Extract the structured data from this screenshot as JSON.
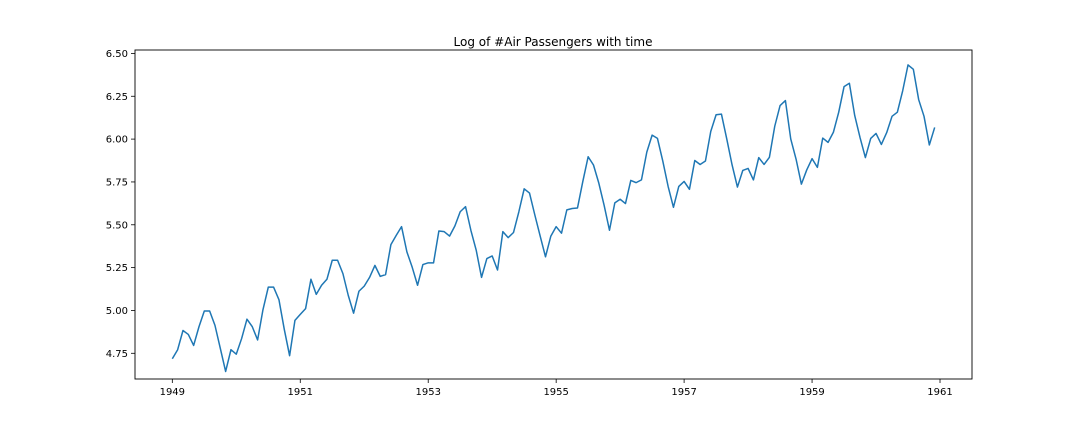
{
  "chart_data": {
    "type": "line",
    "title": "Log of #Air Passengers with time",
    "xlabel": "",
    "ylabel": "",
    "xlim": [
      "1948-06",
      "1961-07"
    ],
    "ylim": [
      4.6,
      6.52
    ],
    "xticks": [
      {
        "value": "1949-01",
        "label": "1949"
      },
      {
        "value": "1951-01",
        "label": "1951"
      },
      {
        "value": "1953-01",
        "label": "1953"
      },
      {
        "value": "1955-01",
        "label": "1955"
      },
      {
        "value": "1957-01",
        "label": "1957"
      },
      {
        "value": "1959-01",
        "label": "1959"
      },
      {
        "value": "1961-01",
        "label": "1961"
      }
    ],
    "yticks": [
      {
        "value": 4.75,
        "label": "4.75"
      },
      {
        "value": 5.0,
        "label": "5.00"
      },
      {
        "value": 5.25,
        "label": "5.25"
      },
      {
        "value": 5.5,
        "label": "5.50"
      },
      {
        "value": 5.75,
        "label": "5.75"
      },
      {
        "value": 6.0,
        "label": "6.00"
      },
      {
        "value": 6.25,
        "label": "6.25"
      },
      {
        "value": 6.5,
        "label": "6.50"
      }
    ],
    "grid": false,
    "series": [
      {
        "color": "#1f77b4",
        "x_start": "1949-01",
        "x_step": "1 month",
        "values": [
          4.718,
          4.771,
          4.883,
          4.86,
          4.796,
          4.905,
          4.997,
          4.997,
          4.913,
          4.779,
          4.644,
          4.771,
          4.745,
          4.836,
          4.949,
          4.905,
          4.828,
          5.004,
          5.136,
          5.136,
          5.063,
          4.89,
          4.736,
          4.942,
          4.977,
          5.011,
          5.182,
          5.094,
          5.147,
          5.182,
          5.293,
          5.293,
          5.215,
          5.088,
          4.984,
          5.112,
          5.142,
          5.193,
          5.263,
          5.199,
          5.209,
          5.384,
          5.438,
          5.489,
          5.342,
          5.252,
          5.147,
          5.268,
          5.278,
          5.278,
          5.464,
          5.46,
          5.434,
          5.493,
          5.576,
          5.606,
          5.468,
          5.352,
          5.193,
          5.303,
          5.318,
          5.236,
          5.46,
          5.425,
          5.455,
          5.576,
          5.71,
          5.685,
          5.557,
          5.434,
          5.313,
          5.434,
          5.489,
          5.451,
          5.587,
          5.595,
          5.598,
          5.753,
          5.897,
          5.849,
          5.743,
          5.613,
          5.468,
          5.628,
          5.649,
          5.624,
          5.759,
          5.746,
          5.762,
          5.924,
          6.023,
          6.004,
          5.872,
          5.724,
          5.602,
          5.724,
          5.753,
          5.707,
          5.875,
          5.852,
          5.872,
          6.045,
          6.142,
          6.146,
          6.001,
          5.849,
          5.72,
          5.817,
          5.829,
          5.762,
          5.892,
          5.852,
          5.894,
          6.075,
          6.196,
          6.225,
          6.001,
          5.883,
          5.737,
          5.82,
          5.886,
          5.835,
          6.006,
          5.981,
          6.04,
          6.157,
          6.306,
          6.326,
          6.138,
          6.009,
          5.892,
          6.004,
          6.033,
          5.969,
          6.038,
          6.133,
          6.157,
          6.282,
          6.433,
          6.407,
          6.23,
          6.133,
          5.966,
          6.068
        ]
      }
    ]
  }
}
